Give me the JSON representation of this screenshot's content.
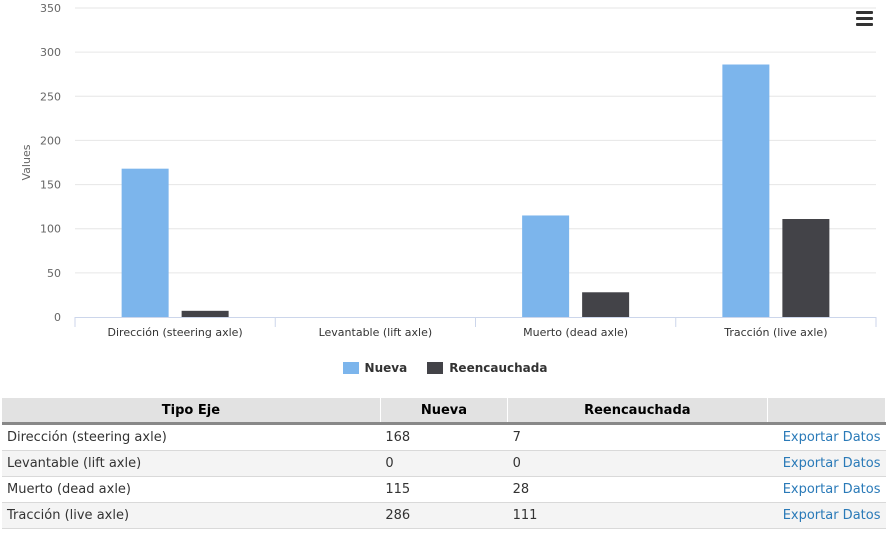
{
  "chart_data": {
    "type": "bar",
    "categories": [
      "Dirección (steering axle)",
      "Levantable (lift axle)",
      "Muerto (dead axle)",
      "Tracción (live axle)"
    ],
    "series": [
      {
        "name": "Nueva",
        "values": [
          168,
          0,
          115,
          286
        ],
        "color": "#7cb5ec"
      },
      {
        "name": "Reencauchada",
        "values": [
          7,
          0,
          28,
          111
        ],
        "color": "#434348"
      }
    ],
    "title": "",
    "xlabel": "",
    "ylabel": "Values",
    "ylim": [
      0,
      350
    ],
    "yticks": [
      0,
      50,
      100,
      150,
      200,
      250,
      300,
      350
    ],
    "grid": true,
    "legend": "bottom-center"
  },
  "menu": {
    "icon": "hamburger-menu-icon"
  },
  "table": {
    "headers": [
      "Tipo Eje",
      "Nueva",
      "Reencauchada",
      ""
    ],
    "rows": [
      {
        "tipo": "Dirección (steering axle)",
        "nueva": "168",
        "reencauchada": "7",
        "action": "Exportar Datos"
      },
      {
        "tipo": "Levantable (lift axle)",
        "nueva": "0",
        "reencauchada": "0",
        "action": "Exportar Datos"
      },
      {
        "tipo": "Muerto (dead axle)",
        "nueva": "115",
        "reencauchada": "28",
        "action": "Exportar Datos"
      },
      {
        "tipo": "Tracción (live axle)",
        "nueva": "286",
        "reencauchada": "111",
        "action": "Exportar Datos"
      }
    ]
  },
  "colors": {
    "link": "#2a7ab8",
    "grid": "#e6e6e6",
    "axis": "#ccd6eb"
  }
}
